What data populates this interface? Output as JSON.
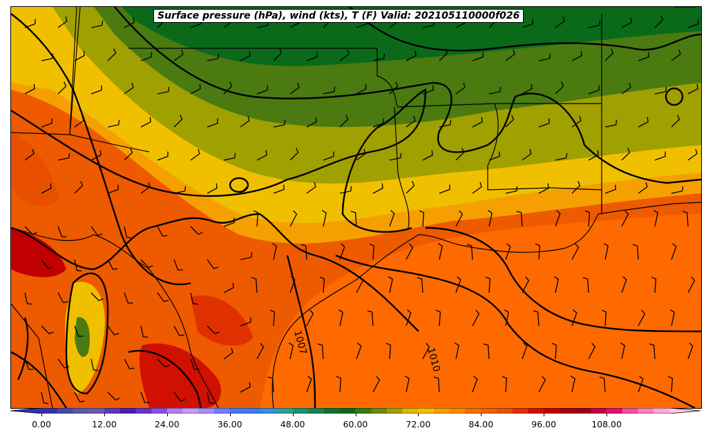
{
  "title": "Surface pressure (hPa), wind (kts), T (F) Valid: 202105110000f026",
  "contour_labels": [
    "1007",
    "1010"
  ],
  "colorbar": {
    "tick_labels": [
      "0.00",
      "12.00",
      "24.00",
      "36.00",
      "48.00",
      "60.00",
      "72.00",
      "84.00",
      "96.00",
      "108.00"
    ],
    "colors": [
      "#3a2fa0",
      "#4a46a8",
      "#5a5aa8",
      "#6a5ab0",
      "#5a3ab8",
      "#4a20a8",
      "#6a30c8",
      "#8a50e0",
      "#b07ff0",
      "#c89af8",
      "#a090f8",
      "#7080f8",
      "#4a78f0",
      "#3a80e8",
      "#3a90d0",
      "#30a090",
      "#20906a",
      "#1a8050",
      "#107030",
      "#0a6a1a",
      "#3a7a10",
      "#6a8a10",
      "#a0a000",
      "#e0b800",
      "#f0c000",
      "#f5a000",
      "#f58a00",
      "#f07000",
      "#ee6200",
      "#e85000",
      "#e03000",
      "#d01000",
      "#c00000",
      "#a80010",
      "#980018",
      "#c00040",
      "#e01070",
      "#f050a0",
      "#f880c0",
      "#ffaad8"
    ],
    "min": 0,
    "max": 120
  },
  "map": {
    "colors": {
      "dark_green": "#0a6a1a",
      "green": "#4a7a10",
      "olive": "#a0a000",
      "yellow": "#f0c000",
      "orange": "#f5a000",
      "dark_orange": "#ff6a00",
      "red_orange": "#ee5a00",
      "red": "#d01000"
    }
  }
}
